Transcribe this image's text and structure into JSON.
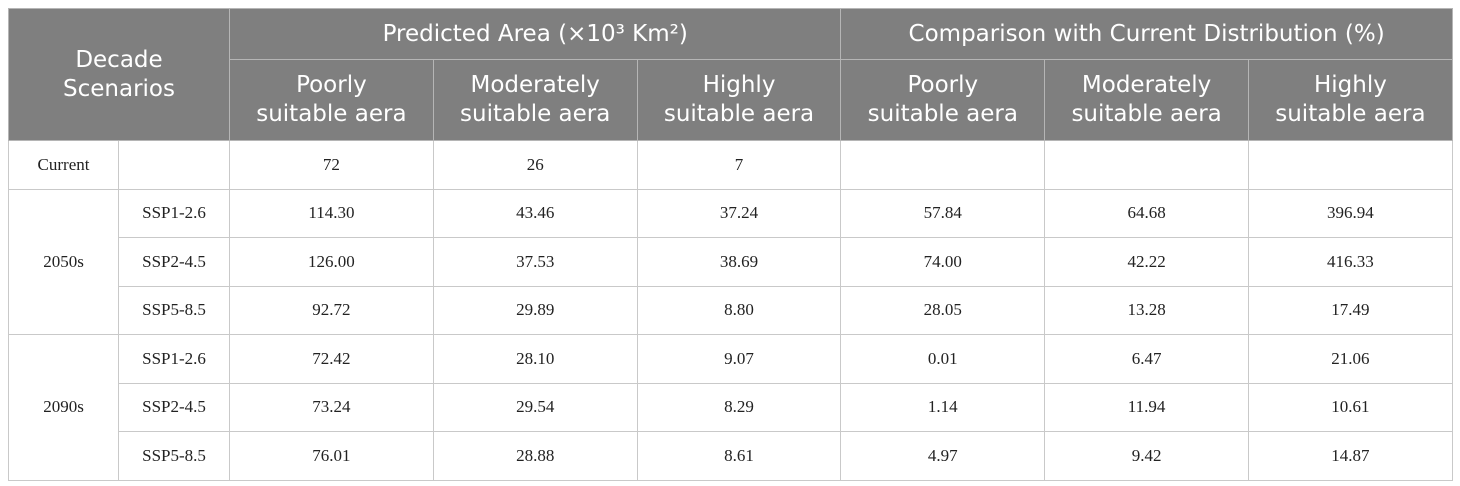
{
  "table": {
    "corner": "Decade\nScenarios",
    "groups": [
      "Predicted Area (×10³ Km²)",
      "Comparison with Current Distribution (%)"
    ],
    "columns": [
      "Poorly\nsuitable aera",
      "Moderately\nsuitable aera",
      "Highly\nsuitable aera",
      "Poorly\nsuitable aera",
      "Moderately\nsuitable aera",
      "Highly\nsuitable aera"
    ],
    "current": {
      "label": "Current",
      "cells": [
        "72",
        "26",
        "7"
      ]
    },
    "sections": [
      {
        "decade": "2050s",
        "rows": [
          {
            "scenario": "SSP1-2.6",
            "cells": [
              "114.30",
              "43.46",
              "37.24",
              "57.84",
              "64.68",
              "396.94"
            ]
          },
          {
            "scenario": "SSP2-4.5",
            "cells": [
              "126.00",
              "37.53",
              "38.69",
              "74.00",
              "42.22",
              "416.33"
            ]
          },
          {
            "scenario": "SSP5-8.5",
            "cells": [
              "92.72",
              "29.89",
              "8.80",
              "28.05",
              "13.28",
              "17.49"
            ]
          }
        ]
      },
      {
        "decade": "2090s",
        "rows": [
          {
            "scenario": "SSP1-2.6",
            "cells": [
              "72.42",
              "28.10",
              "9.07",
              "0.01",
              "6.47",
              "21.06"
            ]
          },
          {
            "scenario": "SSP2-4.5",
            "cells": [
              "73.24",
              "29.54",
              "8.29",
              "1.14",
              "11.94",
              "10.61"
            ]
          },
          {
            "scenario": "SSP5-8.5",
            "cells": [
              "76.01",
              "28.88",
              "8.61",
              "4.97",
              "9.42",
              "14.87"
            ]
          }
        ]
      }
    ]
  }
}
